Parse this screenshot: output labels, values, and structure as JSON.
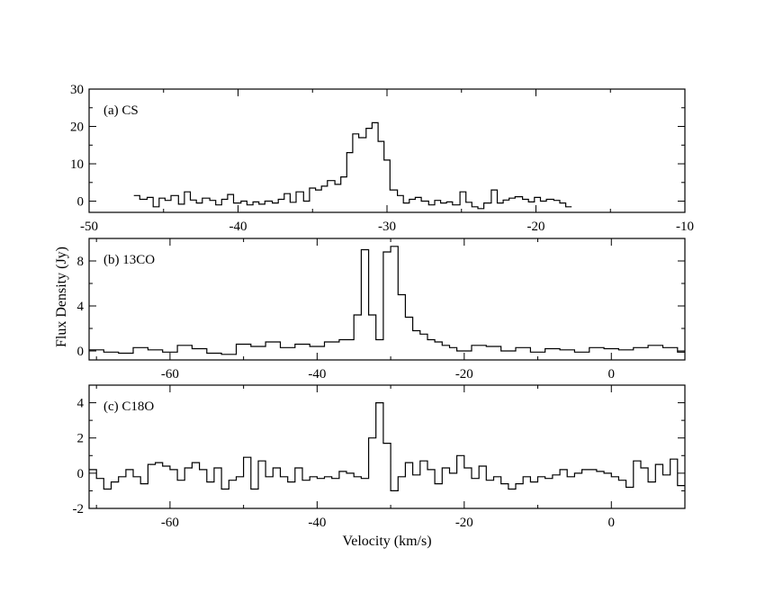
{
  "chart_data": [
    {
      "type": "line",
      "drawstyle": "steps",
      "label": "(a) CS",
      "xlim": [
        -50,
        -10
      ],
      "ylim": [
        -3,
        30
      ],
      "x_ticks": [
        -50,
        -40,
        -30,
        -20,
        -10
      ],
      "y_ticks": [
        0,
        10,
        20,
        30
      ],
      "grid": false,
      "x": [
        -47.0,
        -46.6,
        -46.1,
        -45.7,
        -45.3,
        -44.9,
        -44.5,
        -44.0,
        -43.6,
        -43.2,
        -42.8,
        -42.4,
        -41.9,
        -41.5,
        -41.1,
        -40.7,
        -40.3,
        -39.8,
        -39.4,
        -39.0,
        -38.6,
        -38.2,
        -37.7,
        -37.3,
        -36.9,
        -36.5,
        -36.1,
        -35.6,
        -35.2,
        -34.8,
        -34.4,
        -34.0,
        -33.5,
        -33.1,
        -32.7,
        -32.3,
        -31.9,
        -31.4,
        -31.0,
        -30.6,
        -30.2,
        -29.8,
        -29.3,
        -28.9,
        -28.5,
        -28.1,
        -27.7,
        -27.2,
        -26.8,
        -26.4,
        -26.0,
        -25.6,
        -25.1,
        -24.7,
        -24.3,
        -23.9,
        -23.5,
        -23.0,
        -22.6,
        -22.2,
        -21.8,
        -21.4,
        -20.9,
        -20.5,
        -20.1,
        -19.7,
        -19.3,
        -18.8,
        -18.4,
        -18.0
      ],
      "y": [
        1.5,
        0.5,
        1.0,
        -1.5,
        0.8,
        0.2,
        1.5,
        -0.8,
        2.5,
        0.3,
        -0.5,
        0.8,
        0.2,
        -1.0,
        0.5,
        1.8,
        -0.5,
        0.0,
        -1.0,
        -0.2,
        -0.8,
        0.0,
        -0.5,
        0.5,
        2.0,
        -0.3,
        2.5,
        0.0,
        3.5,
        3.0,
        4.0,
        5.5,
        4.5,
        6.5,
        13.0,
        18.0,
        17.0,
        19.5,
        21.0,
        16.0,
        11.0,
        3.0,
        1.5,
        -0.5,
        0.5,
        1.0,
        0.0,
        -1.0,
        0.2,
        -0.5,
        -0.2,
        -1.0,
        2.5,
        -0.3,
        -1.5,
        -2.0,
        -0.5,
        3.0,
        -0.5,
        0.3,
        0.8,
        1.2,
        0.5,
        -0.2,
        1.0,
        0.0,
        0.5,
        0.2,
        -0.5,
        -1.5
      ]
    },
    {
      "type": "line",
      "drawstyle": "steps",
      "label": "(b) 13CO",
      "ylabel": "Flux Density (Jy)",
      "xlim": [
        -71,
        10
      ],
      "ylim": [
        -0.8,
        10
      ],
      "x_ticks": [
        -60,
        -40,
        -20,
        0
      ],
      "y_ticks": [
        0,
        4,
        8
      ],
      "grid": false,
      "x": [
        -71.0,
        -69.0,
        -67.0,
        -65.0,
        -63.0,
        -61.0,
        -59.0,
        -57.0,
        -55.0,
        -53.0,
        -51.0,
        -49.0,
        -47.0,
        -45.0,
        -43.0,
        -41.0,
        -39.0,
        -37.0,
        -35.0,
        -34.0,
        -33.0,
        -32.0,
        -31.0,
        -30.0,
        -29.0,
        -28.0,
        -27.0,
        -26.0,
        -25.0,
        -24.0,
        -23.0,
        -22.0,
        -21.0,
        -19.0,
        -17.0,
        -15.0,
        -13.0,
        -11.0,
        -9.0,
        -7.0,
        -5.0,
        -3.0,
        -1.0,
        1.0,
        3.0,
        5.0,
        7.0,
        9.0
      ],
      "y": [
        0.1,
        -0.1,
        -0.2,
        0.3,
        0.1,
        -0.1,
        0.5,
        0.2,
        -0.2,
        -0.3,
        0.6,
        0.4,
        0.8,
        0.3,
        0.6,
        0.4,
        0.8,
        1.0,
        3.2,
        9.0,
        3.2,
        1.0,
        8.8,
        9.3,
        5.0,
        3.0,
        1.8,
        1.5,
        1.0,
        0.8,
        0.5,
        0.3,
        0.0,
        0.5,
        0.4,
        0.0,
        0.3,
        -0.1,
        0.2,
        0.1,
        -0.1,
        0.3,
        0.2,
        0.1,
        0.3,
        0.5,
        0.3,
        -0.1
      ]
    },
    {
      "type": "line",
      "drawstyle": "steps",
      "label": "(c) C18O",
      "xlabel": "Velocity (km/s)",
      "xlim": [
        -71,
        10
      ],
      "ylim": [
        -2,
        5
      ],
      "x_ticks": [
        -60,
        -40,
        -20,
        0
      ],
      "y_ticks": [
        -2,
        0,
        2,
        4
      ],
      "grid": false,
      "x": [
        -71.0,
        -70.0,
        -69.0,
        -68.0,
        -67.0,
        -66.0,
        -65.0,
        -64.0,
        -63.0,
        -62.0,
        -61.0,
        -60.0,
        -59.0,
        -58.0,
        -57.0,
        -56.0,
        -55.0,
        -54.0,
        -53.0,
        -52.0,
        -51.0,
        -50.0,
        -49.0,
        -48.0,
        -47.0,
        -46.0,
        -45.0,
        -44.0,
        -43.0,
        -42.0,
        -41.0,
        -40.0,
        -39.0,
        -38.0,
        -37.0,
        -36.0,
        -35.0,
        -34.0,
        -33.0,
        -32.0,
        -31.0,
        -30.0,
        -29.0,
        -28.0,
        -27.0,
        -26.0,
        -25.0,
        -24.0,
        -23.0,
        -22.0,
        -21.0,
        -20.0,
        -19.0,
        -18.0,
        -17.0,
        -16.0,
        -15.0,
        -14.0,
        -13.0,
        -12.0,
        -11.0,
        -10.0,
        -9.0,
        -8.0,
        -7.0,
        -6.0,
        -5.0,
        -4.0,
        -3.0,
        -2.0,
        -1.0,
        0.0,
        1.0,
        2.0,
        3.0,
        4.0,
        5.0,
        6.0,
        7.0,
        8.0,
        9.0
      ],
      "y": [
        0.2,
        -0.3,
        -0.9,
        -0.5,
        -0.2,
        0.2,
        -0.2,
        -0.6,
        0.5,
        0.6,
        0.4,
        0.2,
        -0.4,
        0.3,
        0.6,
        0.2,
        -0.5,
        0.3,
        -0.9,
        -0.4,
        -0.2,
        0.9,
        -0.9,
        0.7,
        -0.2,
        0.3,
        -0.2,
        -0.5,
        0.3,
        -0.4,
        -0.2,
        -0.3,
        -0.2,
        -0.3,
        0.1,
        0.0,
        -0.2,
        -0.3,
        2.0,
        4.0,
        1.7,
        -1.0,
        -0.2,
        0.6,
        -0.1,
        0.7,
        0.2,
        -0.6,
        0.3,
        0.0,
        1.0,
        0.3,
        -0.3,
        0.4,
        -0.4,
        -0.2,
        -0.6,
        -0.9,
        -0.6,
        -0.2,
        -0.5,
        -0.2,
        -0.3,
        -0.1,
        0.2,
        -0.2,
        0.0,
        0.2,
        0.2,
        0.1,
        0.0,
        -0.2,
        -0.4,
        -0.8,
        0.7,
        0.3,
        -0.5,
        0.5,
        -0.1,
        0.8,
        -0.7
      ]
    }
  ]
}
